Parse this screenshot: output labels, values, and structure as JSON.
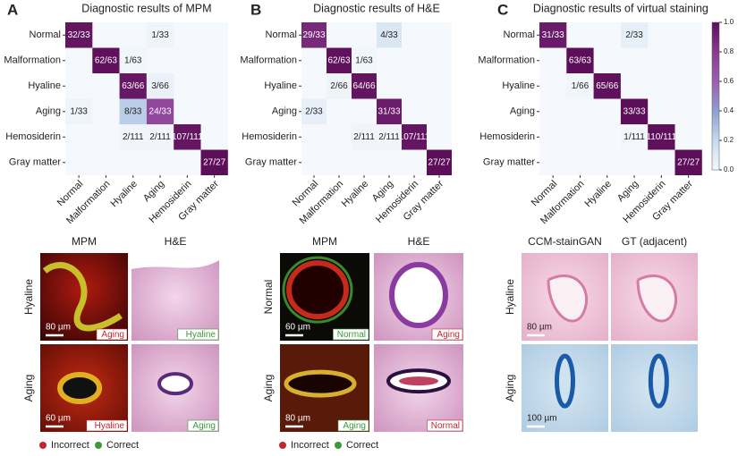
{
  "panels": [
    {
      "letter": "A",
      "title": "Diagnostic results of MPM",
      "classes": [
        "Normal",
        "Malformation",
        "Hyaline",
        "Aging",
        "Hemosiderin",
        "Gray matter"
      ],
      "matrix": [
        [
          "32/33",
          null,
          null,
          "1/33",
          null,
          null
        ],
        [
          null,
          "62/63",
          "1/63",
          null,
          null,
          null
        ],
        [
          null,
          null,
          "63/66",
          "3/66",
          null,
          null
        ],
        [
          "1/33",
          null,
          "8/33",
          "24/33",
          null,
          null
        ],
        [
          null,
          null,
          "2/111",
          "2/111",
          "107/111",
          null
        ],
        [
          null,
          null,
          null,
          null,
          null,
          "27/27"
        ]
      ]
    },
    {
      "letter": "B",
      "title": "Diagnostic results of H&E",
      "classes": [
        "Normal",
        "Malformation",
        "Hyaline",
        "Aging",
        "Hemosiderin",
        "Gray matter"
      ],
      "matrix": [
        [
          "29/33",
          null,
          null,
          "4/33",
          null,
          null
        ],
        [
          null,
          "62/63",
          "1/63",
          null,
          null,
          null
        ],
        [
          null,
          "2/66",
          "64/66",
          null,
          null,
          null
        ],
        [
          "2/33",
          null,
          null,
          "31/33",
          null,
          null
        ],
        [
          null,
          null,
          "2/111",
          "2/111",
          "107/111",
          null
        ],
        [
          null,
          null,
          null,
          null,
          null,
          "27/27"
        ]
      ]
    },
    {
      "letter": "C",
      "title": "Diagnostic results of virtual staining",
      "classes": [
        "Normal",
        "Malformation",
        "Hyaline",
        "Aging",
        "Hemosiderin",
        "Gray matter"
      ],
      "matrix": [
        [
          "31/33",
          null,
          null,
          "2/33",
          null,
          null
        ],
        [
          null,
          "63/63",
          null,
          null,
          null,
          null
        ],
        [
          null,
          "1/66",
          "65/66",
          null,
          null,
          null
        ],
        [
          null,
          null,
          null,
          "33/33",
          null,
          null
        ],
        [
          null,
          null,
          null,
          "1/111",
          "110/111",
          null
        ],
        [
          null,
          null,
          null,
          null,
          null,
          "27/27"
        ]
      ]
    }
  ],
  "colorbar": {
    "ticks": [
      {
        "value": 0,
        "label": "0.0"
      },
      {
        "value": 0.2,
        "label": "0.2"
      },
      {
        "value": 0.4,
        "label": "0.4"
      },
      {
        "value": 0.6,
        "label": "0.6"
      },
      {
        "value": 0.8,
        "label": "0.8"
      },
      {
        "value": 1,
        "label": "1.0"
      }
    ]
  },
  "images": [
    {
      "columns": [
        "MPM",
        "H&E"
      ],
      "rows": [
        {
          "label": "Hyaline",
          "cells": [
            {
              "tag": "Aging",
              "correct": false,
              "scale": "80 µm"
            },
            {
              "tag": "Hyaline",
              "correct": true
            }
          ]
        },
        {
          "label": "Aging",
          "cells": [
            {
              "tag": "Hyaline",
              "correct": false,
              "scale": "60 µm"
            },
            {
              "tag": "Aging",
              "correct": true
            }
          ]
        }
      ]
    },
    {
      "columns": [
        "MPM",
        "H&E"
      ],
      "rows": [
        {
          "label": "Normal",
          "cells": [
            {
              "tag": "Normal",
              "correct": true,
              "scale": "60 µm"
            },
            {
              "tag": "Aging",
              "correct": false
            }
          ]
        },
        {
          "label": "Aging",
          "cells": [
            {
              "tag": "Aging",
              "correct": true,
              "scale": "80 µm"
            },
            {
              "tag": "Normal",
              "correct": false
            }
          ]
        }
      ]
    },
    {
      "columns": [
        "CCM-stainGAN",
        "GT (adjacent)"
      ],
      "rows": [
        {
          "label": "Hyaline",
          "cells": [
            {
              "scale": "80 µm"
            },
            {}
          ]
        },
        {
          "label": "Aging",
          "cells": [
            {
              "scale": "100 µm"
            },
            {}
          ]
        }
      ]
    }
  ],
  "legend": [
    {
      "name": "Incorrect",
      "color": "#c0272d"
    },
    {
      "name": "Correct",
      "color": "#3a9a3a"
    }
  ]
}
